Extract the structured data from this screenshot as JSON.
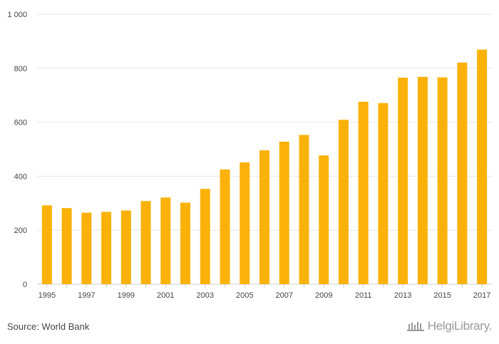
{
  "chart_data": {
    "type": "bar",
    "categories": [
      "1995",
      "1996",
      "1997",
      "1998",
      "1999",
      "2000",
      "2001",
      "2002",
      "2003",
      "2004",
      "2005",
      "2006",
      "2007",
      "2008",
      "2009",
      "2010",
      "2011",
      "2012",
      "2013",
      "2014",
      "2015",
      "2016",
      "2017"
    ],
    "x_tick_labels": [
      "1995",
      "1997",
      "1999",
      "2001",
      "2003",
      "2005",
      "2007",
      "2009",
      "2011",
      "2013",
      "2015",
      "2017"
    ],
    "values": [
      292,
      282,
      265,
      268,
      273,
      308,
      321,
      302,
      353,
      425,
      451,
      496,
      528,
      553,
      477,
      609,
      676,
      671,
      765,
      768,
      766,
      821,
      869
    ],
    "y_ticks": [
      0,
      200,
      400,
      600,
      800,
      1000
    ],
    "y_tick_labels": [
      "0",
      "200",
      "400",
      "600",
      "800",
      "1 000"
    ],
    "ylim": [
      0,
      1000
    ],
    "grid": true,
    "bar_color": "#FAB20A",
    "title": "",
    "xlabel": "",
    "ylabel": ""
  },
  "footer": {
    "source": "Source: World Bank",
    "brand": "HelgiLibrary."
  },
  "colors": {
    "grid": "#e6e6e6",
    "axis": "#cccccc",
    "text": "#444444",
    "brand": "#9a9a9a"
  }
}
